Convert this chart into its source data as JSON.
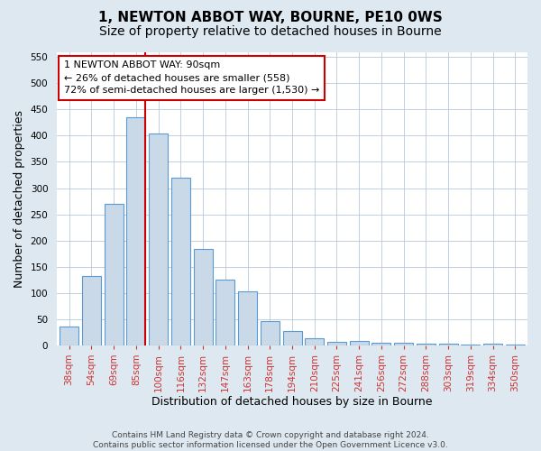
{
  "title": "1, NEWTON ABBOT WAY, BOURNE, PE10 0WS",
  "subtitle": "Size of property relative to detached houses in Bourne",
  "xlabel": "Distribution of detached houses by size in Bourne",
  "ylabel": "Number of detached properties",
  "categories": [
    "38sqm",
    "54sqm",
    "69sqm",
    "85sqm",
    "100sqm",
    "116sqm",
    "132sqm",
    "147sqm",
    "163sqm",
    "178sqm",
    "194sqm",
    "210sqm",
    "225sqm",
    "241sqm",
    "256sqm",
    "272sqm",
    "288sqm",
    "303sqm",
    "319sqm",
    "334sqm",
    "350sqm"
  ],
  "values": [
    35,
    133,
    270,
    435,
    405,
    320,
    183,
    125,
    103,
    46,
    27,
    14,
    6,
    9,
    4,
    5,
    3,
    3,
    2,
    3,
    2
  ],
  "bar_color": "#c9d9e8",
  "bar_edge_color": "#5b9bd5",
  "annotation_text_line1": "1 NEWTON ABBOT WAY: 90sqm",
  "annotation_text_line2": "← 26% of detached houses are smaller (558)",
  "annotation_text_line3": "72% of semi-detached houses are larger (1,530) →",
  "annotation_box_color": "#ffffff",
  "annotation_box_edge_color": "#cc0000",
  "vline_color": "#cc0000",
  "vline_x": 3.425,
  "ylim": [
    0,
    560
  ],
  "yticks": [
    0,
    50,
    100,
    150,
    200,
    250,
    300,
    350,
    400,
    450,
    500,
    550
  ],
  "footer_line1": "Contains HM Land Registry data © Crown copyright and database right 2024.",
  "footer_line2": "Contains public sector information licensed under the Open Government Licence v3.0.",
  "bg_color": "#dde8f0",
  "plot_bg_color": "#ffffff",
  "title_fontsize": 11,
  "subtitle_fontsize": 10,
  "tick_fontsize": 7.5,
  "xlabel_fontsize": 9,
  "ylabel_fontsize": 9,
  "annotation_fontsize": 8,
  "footer_fontsize": 6.5
}
